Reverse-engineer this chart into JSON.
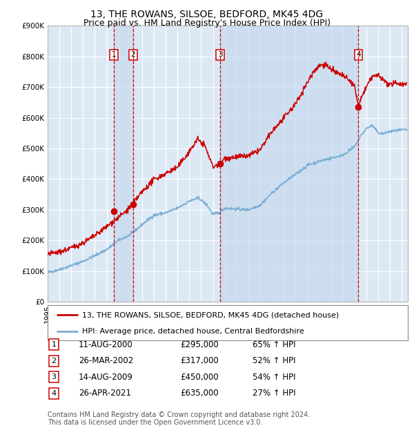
{
  "title": "13, THE ROWANS, SILSOE, BEDFORD, MK45 4DG",
  "subtitle": "Price paid vs. HM Land Registry's House Price Index (HPI)",
  "ylim": [
    0,
    900000
  ],
  "yticks": [
    0,
    100000,
    200000,
    300000,
    400000,
    500000,
    600000,
    700000,
    800000,
    900000
  ],
  "ytick_labels": [
    "£0",
    "£100K",
    "£200K",
    "£300K",
    "£400K",
    "£500K",
    "£600K",
    "£700K",
    "£800K",
    "£900K"
  ],
  "xlim_start": 1995.0,
  "xlim_end": 2025.5,
  "background_color": "#ffffff",
  "plot_bg_color": "#dce9f5",
  "grid_color": "#ffffff",
  "sale_color": "#cc0000",
  "hpi_color": "#7aaed4",
  "sale_dot_color": "#cc0000",
  "dashed_line_color": "#cc0000",
  "shade_color": "#c8d8ee",
  "sale_label": "13, THE ROWANS, SILSOE, BEDFORD, MK45 4DG (detached house)",
  "hpi_label": "HPI: Average price, detached house, Central Bedfordshire",
  "sales": [
    {
      "num": 1,
      "date_str": "11-AUG-2000",
      "price": 295000,
      "year": 2000.61,
      "pct": "65%"
    },
    {
      "num": 2,
      "date_str": "26-MAR-2002",
      "price": 317000,
      "year": 2002.23,
      "pct": "52%"
    },
    {
      "num": 3,
      "date_str": "14-AUG-2009",
      "price": 450000,
      "year": 2009.62,
      "pct": "54%"
    },
    {
      "num": 4,
      "date_str": "26-APR-2021",
      "price": 635000,
      "year": 2021.32,
      "pct": "27%"
    }
  ],
  "footnote1": "Contains HM Land Registry data © Crown copyright and database right 2024.",
  "footnote2": "This data is licensed under the Open Government Licence v3.0.",
  "title_fontsize": 10,
  "subtitle_fontsize": 9,
  "tick_fontsize": 7.5,
  "legend_fontsize": 8,
  "table_fontsize": 8.5,
  "footnote_fontsize": 7
}
